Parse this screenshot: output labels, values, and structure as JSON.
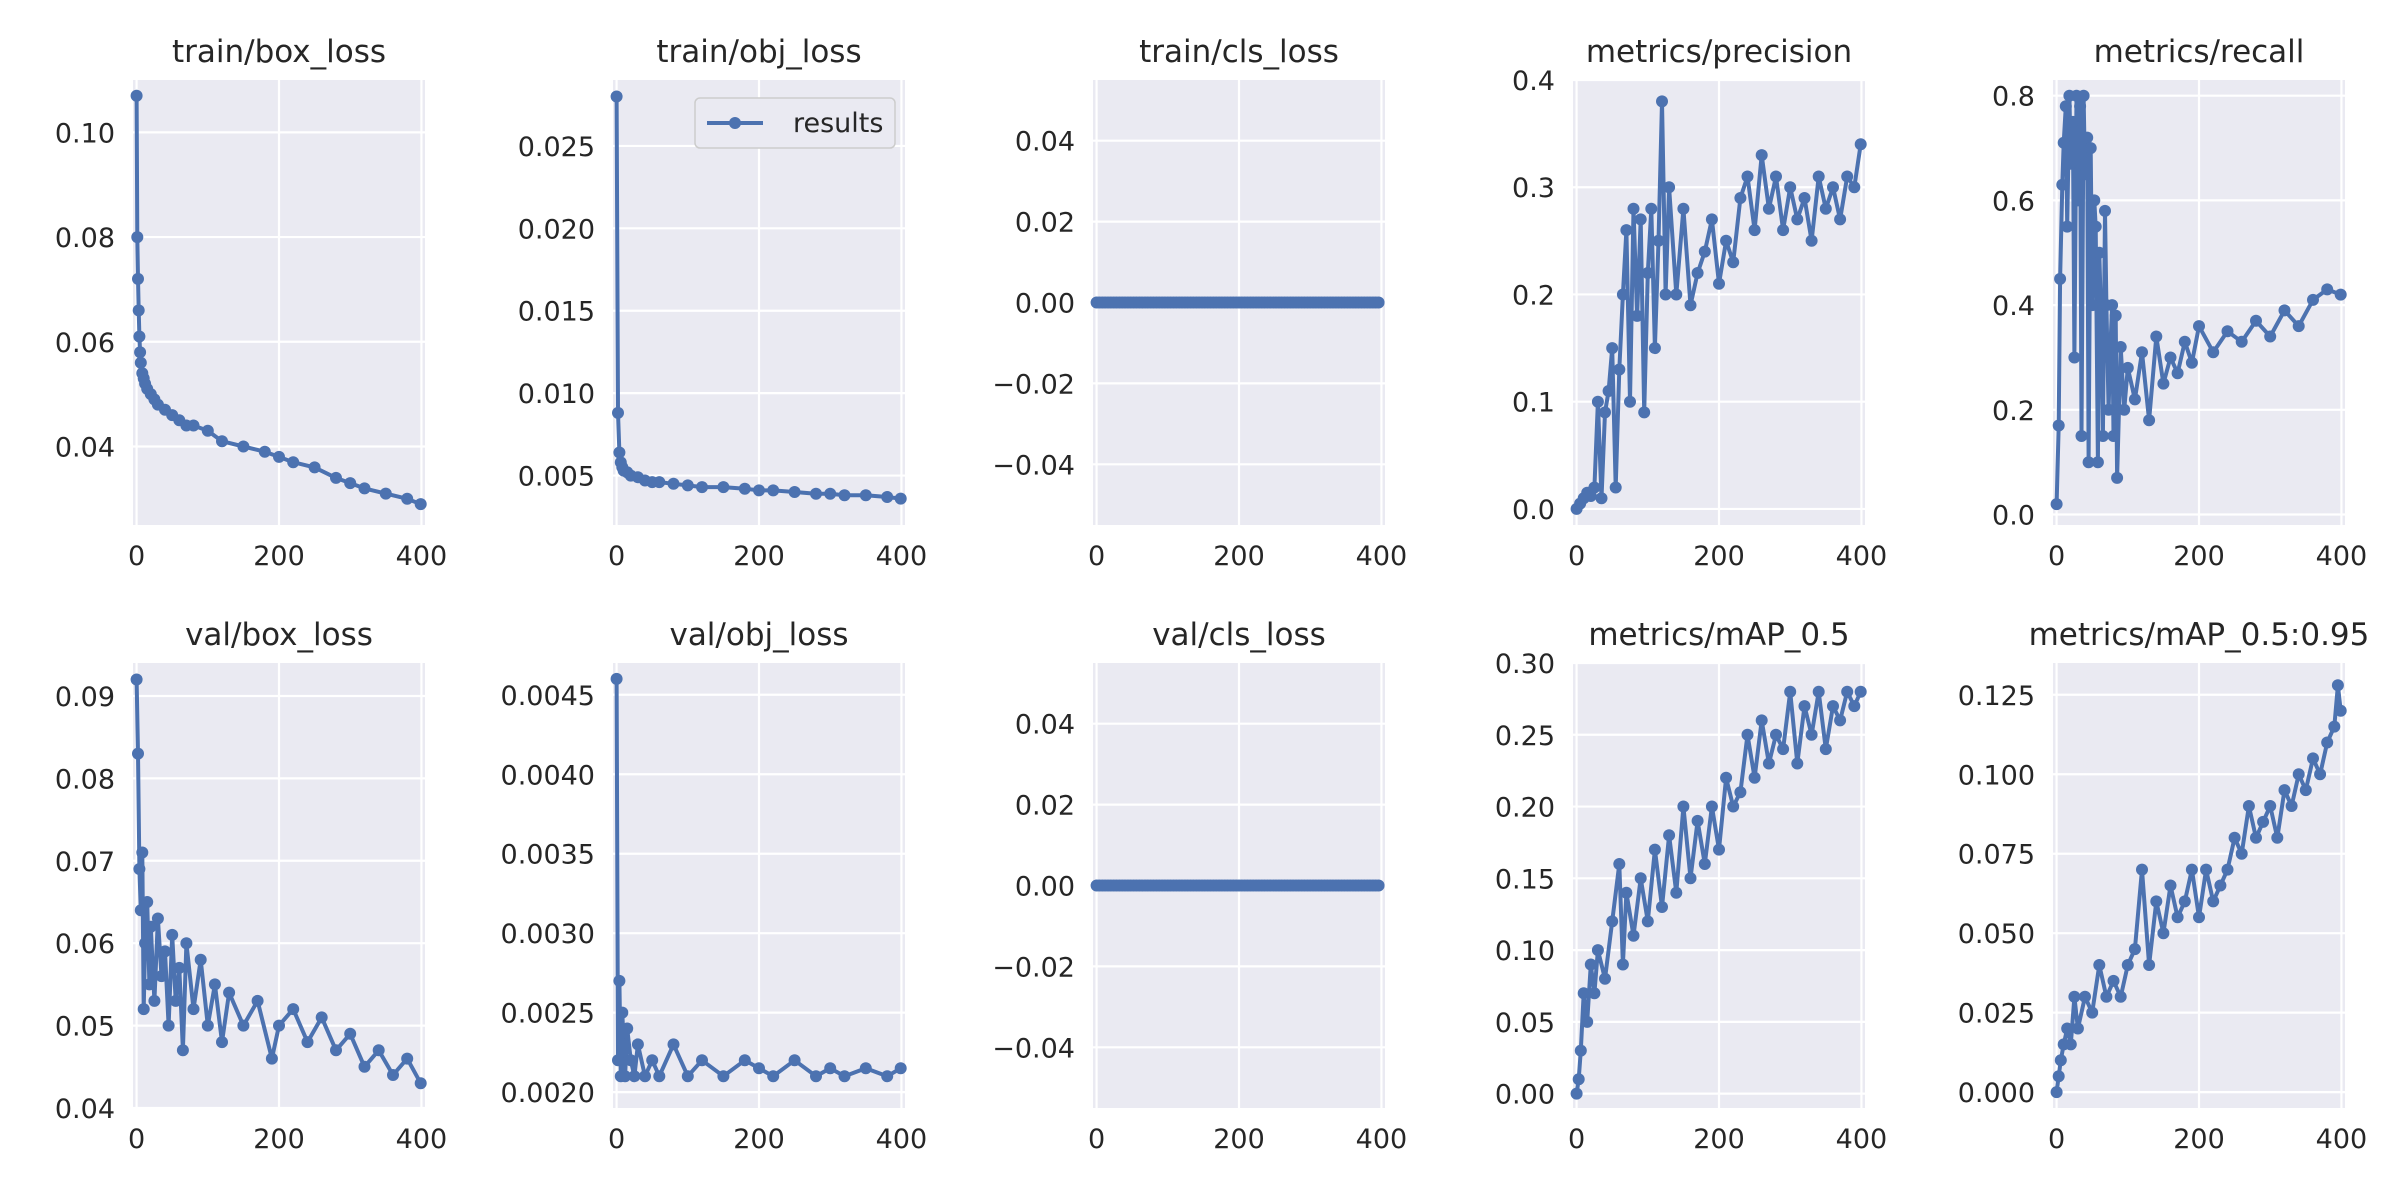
{
  "figure": {
    "series_name": "results",
    "colors": {
      "series": "#4c72b0",
      "axes_bg": "#eaeaf2",
      "grid": "#ffffff",
      "text": "#262626",
      "background": "#ffffff"
    }
  },
  "chart_data": [
    {
      "type": "line",
      "title": "train/box_loss",
      "xlim": [
        -5,
        405
      ],
      "ylim": [
        0.025,
        0.11
      ],
      "xticks": [
        0,
        200,
        400
      ],
      "xtick_labels": [
        "0",
        "200",
        "400"
      ],
      "yticks": [
        0.04,
        0.06,
        0.08,
        0.1
      ],
      "ytick_labels": [
        "0.04",
        "0.06",
        "0.08",
        "0.10"
      ],
      "series": [
        {
          "name": "results",
          "x": [
            0,
            1,
            2,
            3,
            4,
            5,
            6,
            8,
            10,
            12,
            15,
            20,
            25,
            30,
            40,
            50,
            60,
            70,
            80,
            100,
            120,
            150,
            180,
            200,
            220,
            250,
            280,
            300,
            320,
            350,
            380,
            399
          ],
          "y": [
            0.107,
            0.08,
            0.072,
            0.066,
            0.061,
            0.058,
            0.056,
            0.054,
            0.053,
            0.052,
            0.051,
            0.05,
            0.049,
            0.048,
            0.047,
            0.046,
            0.045,
            0.044,
            0.044,
            0.043,
            0.041,
            0.04,
            0.039,
            0.038,
            0.037,
            0.036,
            0.034,
            0.033,
            0.032,
            0.031,
            0.03,
            0.029
          ]
        }
      ]
    },
    {
      "type": "line",
      "title": "train/obj_loss",
      "xlim": [
        -5,
        405
      ],
      "ylim": [
        0.002,
        0.029
      ],
      "xticks": [
        0,
        200,
        400
      ],
      "xtick_labels": [
        "0",
        "200",
        "400"
      ],
      "yticks": [
        0.005,
        0.01,
        0.015,
        0.02,
        0.025
      ],
      "ytick_labels": [
        "0.005",
        "0.010",
        "0.015",
        "0.020",
        "0.025"
      ],
      "legend": {
        "entries": [
          "results"
        ],
        "loc": "upper right"
      },
      "series": [
        {
          "name": "results",
          "x": [
            0,
            2,
            4,
            6,
            8,
            10,
            15,
            20,
            30,
            40,
            50,
            60,
            80,
            100,
            120,
            150,
            180,
            200,
            220,
            250,
            280,
            300,
            320,
            350,
            380,
            399
          ],
          "y": [
            0.028,
            0.0088,
            0.0064,
            0.0058,
            0.0055,
            0.0053,
            0.0052,
            0.005,
            0.0049,
            0.0047,
            0.0046,
            0.0046,
            0.0045,
            0.0044,
            0.0043,
            0.0043,
            0.0042,
            0.0041,
            0.0041,
            0.004,
            0.0039,
            0.0039,
            0.0038,
            0.0038,
            0.0037,
            0.0036
          ]
        }
      ]
    },
    {
      "type": "line",
      "title": "train/cls_loss",
      "xlim": [
        -5,
        405
      ],
      "ylim": [
        -0.055,
        0.055
      ],
      "xticks": [
        0,
        200,
        400
      ],
      "xtick_labels": [
        "0",
        "200",
        "400"
      ],
      "yticks": [
        -0.04,
        -0.02,
        0.0,
        0.02,
        0.04
      ],
      "ytick_labels": [
        "−0.04",
        "−0.02",
        "0.00",
        "0.02",
        "0.04"
      ],
      "series": [
        {
          "name": "results",
          "x": [
            0,
            399
          ],
          "y": [
            0,
            0
          ]
        }
      ]
    },
    {
      "type": "line",
      "title": "metrics/precision",
      "xlim": [
        -5,
        405
      ],
      "ylim": [
        -0.015,
        0.4
      ],
      "xticks": [
        0,
        200,
        400
      ],
      "xtick_labels": [
        "0",
        "200",
        "400"
      ],
      "yticks": [
        0.0,
        0.1,
        0.2,
        0.3,
        0.4
      ],
      "ytick_labels": [
        "0.0",
        "0.1",
        "0.2",
        "0.3",
        "0.4"
      ],
      "series": [
        {
          "name": "results",
          "x": [
            0,
            5,
            10,
            15,
            20,
            25,
            30,
            35,
            40,
            45,
            50,
            55,
            60,
            65,
            70,
            75,
            80,
            85,
            90,
            95,
            100,
            105,
            110,
            115,
            120,
            125,
            130,
            140,
            150,
            160,
            170,
            180,
            190,
            200,
            210,
            220,
            230,
            240,
            250,
            260,
            270,
            280,
            290,
            300,
            310,
            320,
            330,
            340,
            350,
            360,
            370,
            380,
            390,
            399
          ],
          "y": [
            0.0,
            0.005,
            0.01,
            0.015,
            0.012,
            0.02,
            0.1,
            0.01,
            0.09,
            0.11,
            0.15,
            0.02,
            0.13,
            0.2,
            0.26,
            0.1,
            0.28,
            0.18,
            0.27,
            0.09,
            0.22,
            0.28,
            0.15,
            0.25,
            0.38,
            0.2,
            0.3,
            0.2,
            0.28,
            0.19,
            0.22,
            0.24,
            0.27,
            0.21,
            0.25,
            0.23,
            0.29,
            0.31,
            0.26,
            0.33,
            0.28,
            0.31,
            0.26,
            0.3,
            0.27,
            0.29,
            0.25,
            0.31,
            0.28,
            0.3,
            0.27,
            0.31,
            0.3,
            0.34
          ]
        }
      ]
    },
    {
      "type": "line",
      "title": "metrics/recall",
      "xlim": [
        -5,
        405
      ],
      "ylim": [
        -0.02,
        0.83
      ],
      "xticks": [
        0,
        200,
        400
      ],
      "xtick_labels": [
        "0",
        "200",
        "400"
      ],
      "yticks": [
        0.0,
        0.2,
        0.4,
        0.6,
        0.8
      ],
      "ytick_labels": [
        "0.0",
        "0.2",
        "0.4",
        "0.6",
        "0.8"
      ],
      "series": [
        {
          "name": "results",
          "x": [
            0,
            3,
            5,
            8,
            10,
            13,
            15,
            18,
            20,
            23,
            25,
            28,
            30,
            33,
            35,
            38,
            40,
            43,
            45,
            48,
            50,
            53,
            55,
            58,
            60,
            63,
            65,
            68,
            70,
            73,
            75,
            78,
            80,
            83,
            85,
            90,
            95,
            100,
            110,
            120,
            130,
            140,
            150,
            160,
            170,
            180,
            190,
            200,
            220,
            240,
            260,
            280,
            300,
            320,
            340,
            360,
            380,
            399
          ],
          "y": [
            0.02,
            0.17,
            0.45,
            0.63,
            0.71,
            0.78,
            0.55,
            0.8,
            0.67,
            0.75,
            0.3,
            0.8,
            0.6,
            0.78,
            0.15,
            0.8,
            0.65,
            0.72,
            0.1,
            0.7,
            0.4,
            0.6,
            0.55,
            0.1,
            0.5,
            0.35,
            0.15,
            0.58,
            0.4,
            0.2,
            0.3,
            0.4,
            0.15,
            0.38,
            0.07,
            0.32,
            0.2,
            0.28,
            0.22,
            0.31,
            0.18,
            0.34,
            0.25,
            0.3,
            0.27,
            0.33,
            0.29,
            0.36,
            0.31,
            0.35,
            0.33,
            0.37,
            0.34,
            0.39,
            0.36,
            0.41,
            0.43,
            0.42
          ]
        }
      ]
    },
    {
      "type": "line",
      "title": "val/box_loss",
      "xlim": [
        -5,
        405
      ],
      "ylim": [
        0.04,
        0.094
      ],
      "xticks": [
        0,
        200,
        400
      ],
      "xtick_labels": [
        "0",
        "200",
        "400"
      ],
      "yticks": [
        0.04,
        0.05,
        0.06,
        0.07,
        0.08,
        0.09
      ],
      "ytick_labels": [
        "0.04",
        "0.05",
        "0.06",
        "0.07",
        "0.08",
        "0.09"
      ],
      "series": [
        {
          "name": "results",
          "x": [
            0,
            2,
            4,
            6,
            8,
            10,
            12,
            15,
            18,
            20,
            25,
            30,
            35,
            40,
            45,
            50,
            55,
            60,
            65,
            70,
            80,
            90,
            100,
            110,
            120,
            130,
            150,
            170,
            190,
            200,
            220,
            240,
            260,
            280,
            300,
            320,
            340,
            360,
            380,
            399
          ],
          "y": [
            0.092,
            0.083,
            0.069,
            0.064,
            0.071,
            0.052,
            0.06,
            0.065,
            0.055,
            0.062,
            0.053,
            0.063,
            0.056,
            0.059,
            0.05,
            0.061,
            0.053,
            0.057,
            0.047,
            0.06,
            0.052,
            0.058,
            0.05,
            0.055,
            0.048,
            0.054,
            0.05,
            0.053,
            0.046,
            0.05,
            0.052,
            0.048,
            0.051,
            0.047,
            0.049,
            0.045,
            0.047,
            0.044,
            0.046,
            0.043
          ]
        }
      ]
    },
    {
      "type": "line",
      "title": "val/obj_loss",
      "xlim": [
        -5,
        405
      ],
      "ylim": [
        0.0019,
        0.0047
      ],
      "xticks": [
        0,
        200,
        400
      ],
      "xtick_labels": [
        "0",
        "200",
        "400"
      ],
      "yticks": [
        0.002,
        0.0025,
        0.003,
        0.0035,
        0.004,
        0.0045
      ],
      "ytick_labels": [
        "0.0020",
        "0.0025",
        "0.0030",
        "0.0035",
        "0.0040",
        "0.0045"
      ],
      "series": [
        {
          "name": "results",
          "x": [
            0,
            2,
            4,
            6,
            8,
            10,
            12,
            15,
            20,
            25,
            30,
            40,
            50,
            60,
            80,
            100,
            120,
            150,
            180,
            200,
            220,
            250,
            280,
            300,
            320,
            350,
            380,
            399
          ],
          "y": [
            0.0046,
            0.0022,
            0.0027,
            0.0021,
            0.0025,
            0.0023,
            0.0021,
            0.0024,
            0.0022,
            0.0021,
            0.0023,
            0.0021,
            0.0022,
            0.0021,
            0.0023,
            0.0021,
            0.0022,
            0.0021,
            0.0022,
            0.00215,
            0.0021,
            0.0022,
            0.0021,
            0.00215,
            0.0021,
            0.00215,
            0.0021,
            0.00215
          ]
        }
      ]
    },
    {
      "type": "line",
      "title": "val/cls_loss",
      "xlim": [
        -5,
        405
      ],
      "ylim": [
        -0.055,
        0.055
      ],
      "xticks": [
        0,
        200,
        400
      ],
      "xtick_labels": [
        "0",
        "200",
        "400"
      ],
      "yticks": [
        -0.04,
        -0.02,
        0.0,
        0.02,
        0.04
      ],
      "ytick_labels": [
        "−0.04",
        "−0.02",
        "0.00",
        "0.02",
        "0.04"
      ],
      "series": [
        {
          "name": "results",
          "x": [
            0,
            399
          ],
          "y": [
            0,
            0
          ]
        }
      ]
    },
    {
      "type": "line",
      "title": "metrics/mAP_0.5",
      "xlim": [
        -5,
        405
      ],
      "ylim": [
        -0.01,
        0.3
      ],
      "xticks": [
        0,
        200,
        400
      ],
      "xtick_labels": [
        "0",
        "200",
        "400"
      ],
      "yticks": [
        0.0,
        0.05,
        0.1,
        0.15,
        0.2,
        0.25,
        0.3
      ],
      "ytick_labels": [
        "0.00",
        "0.05",
        "0.10",
        "0.15",
        "0.20",
        "0.25",
        "0.30"
      ],
      "series": [
        {
          "name": "results",
          "x": [
            0,
            3,
            6,
            10,
            15,
            20,
            25,
            30,
            40,
            50,
            60,
            65,
            70,
            80,
            90,
            100,
            110,
            120,
            130,
            140,
            150,
            160,
            170,
            180,
            190,
            200,
            210,
            220,
            230,
            240,
            250,
            260,
            270,
            280,
            290,
            300,
            310,
            320,
            330,
            340,
            350,
            360,
            370,
            380,
            390,
            399
          ],
          "y": [
            0.0,
            0.01,
            0.03,
            0.07,
            0.05,
            0.09,
            0.07,
            0.1,
            0.08,
            0.12,
            0.16,
            0.09,
            0.14,
            0.11,
            0.15,
            0.12,
            0.17,
            0.13,
            0.18,
            0.14,
            0.2,
            0.15,
            0.19,
            0.16,
            0.2,
            0.17,
            0.22,
            0.2,
            0.21,
            0.25,
            0.22,
            0.26,
            0.23,
            0.25,
            0.24,
            0.28,
            0.23,
            0.27,
            0.25,
            0.28,
            0.24,
            0.27,
            0.26,
            0.28,
            0.27,
            0.28
          ]
        }
      ]
    },
    {
      "type": "line",
      "title": "metrics/mAP_0.5:0.95",
      "xlim": [
        -5,
        405
      ],
      "ylim": [
        -0.005,
        0.135
      ],
      "xticks": [
        0,
        200,
        400
      ],
      "xtick_labels": [
        "0",
        "200",
        "400"
      ],
      "yticks": [
        0.0,
        0.025,
        0.05,
        0.075,
        0.1,
        0.125
      ],
      "ytick_labels": [
        "0.000",
        "0.025",
        "0.050",
        "0.075",
        "0.100",
        "0.125"
      ],
      "series": [
        {
          "name": "results",
          "x": [
            0,
            3,
            6,
            10,
            15,
            20,
            25,
            30,
            40,
            50,
            60,
            70,
            80,
            90,
            100,
            110,
            120,
            130,
            140,
            150,
            160,
            170,
            180,
            190,
            200,
            210,
            220,
            230,
            240,
            250,
            260,
            270,
            280,
            290,
            300,
            310,
            320,
            330,
            340,
            350,
            360,
            370,
            380,
            390,
            395,
            399
          ],
          "y": [
            0.0,
            0.005,
            0.01,
            0.015,
            0.02,
            0.015,
            0.03,
            0.02,
            0.03,
            0.025,
            0.04,
            0.03,
            0.035,
            0.03,
            0.04,
            0.045,
            0.07,
            0.04,
            0.06,
            0.05,
            0.065,
            0.055,
            0.06,
            0.07,
            0.055,
            0.07,
            0.06,
            0.065,
            0.07,
            0.08,
            0.075,
            0.09,
            0.08,
            0.085,
            0.09,
            0.08,
            0.095,
            0.09,
            0.1,
            0.095,
            0.105,
            0.1,
            0.11,
            0.115,
            0.128,
            0.12
          ]
        }
      ]
    }
  ]
}
